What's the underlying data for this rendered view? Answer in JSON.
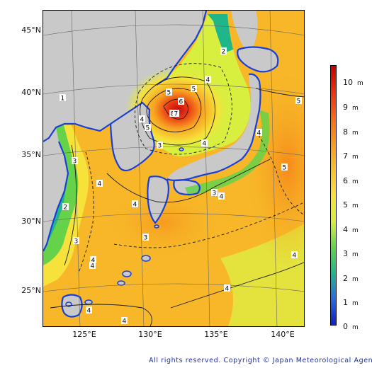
{
  "map": {
    "lat_labels": [
      "45°N",
      "40°N",
      "35°N",
      "30°N",
      "25°N"
    ],
    "lon_labels": [
      "125°E",
      "130°E",
      "135°E",
      "140°E"
    ],
    "colors": {
      "land": "#c9c9c9",
      "coast": "#1a3fd6",
      "sea_default": "#f7b728",
      "contour": "#1a1a1a"
    },
    "contour_labels": [
      "1",
      "2",
      "3",
      "4",
      "5",
      "6",
      "7",
      "8"
    ]
  },
  "colorbar": {
    "labels": [
      "10",
      "9",
      "8",
      "7",
      "6",
      "5",
      "4",
      "3",
      "2",
      "1",
      "0"
    ],
    "unit": "m",
    "stops": [
      "#c00000",
      "#e83010",
      "#f56a15",
      "#f79a20",
      "#f7c030",
      "#f6e23a",
      "#d8ef40",
      "#65d24a",
      "#1fb78a",
      "#2a6ae0",
      "#1020c0"
    ]
  },
  "footer": {
    "copyright": "All rights reserved. Copyright © Japan Meteorological Agency"
  }
}
